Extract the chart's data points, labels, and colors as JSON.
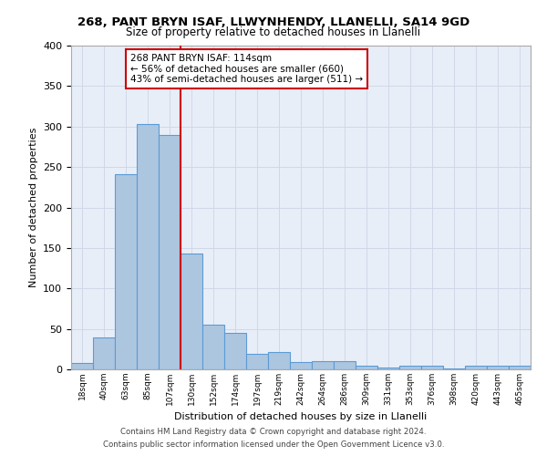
{
  "title1": "268, PANT BRYN ISAF, LLWYNHENDY, LLANELLI, SA14 9GD",
  "title2": "Size of property relative to detached houses in Llanelli",
  "xlabel": "Distribution of detached houses by size in Llanelli",
  "ylabel": "Number of detached properties",
  "bin_labels": [
    "18sqm",
    "40sqm",
    "63sqm",
    "85sqm",
    "107sqm",
    "130sqm",
    "152sqm",
    "174sqm",
    "197sqm",
    "219sqm",
    "242sqm",
    "264sqm",
    "286sqm",
    "309sqm",
    "331sqm",
    "353sqm",
    "376sqm",
    "398sqm",
    "420sqm",
    "443sqm",
    "465sqm"
  ],
  "bar_values": [
    8,
    39,
    241,
    303,
    290,
    143,
    55,
    45,
    19,
    21,
    9,
    10,
    10,
    5,
    2,
    4,
    4,
    1,
    4,
    4,
    5
  ],
  "bar_color": "#adc6e0",
  "bar_edge_color": "#5b9bd5",
  "vline_pos": 4.5,
  "vline_color": "#cc0000",
  "annotation_text": "268 PANT BRYN ISAF: 114sqm\n← 56% of detached houses are smaller (660)\n43% of semi-detached houses are larger (511) →",
  "annotation_box_color": "#ffffff",
  "annotation_box_edge": "#cc0000",
  "grid_color": "#d0d8e8",
  "plot_bg_color": "#e8eef8",
  "footer1": "Contains HM Land Registry data © Crown copyright and database right 2024.",
  "footer2": "Contains public sector information licensed under the Open Government Licence v3.0.",
  "ylim": [
    0,
    400
  ],
  "yticks": [
    0,
    50,
    100,
    150,
    200,
    250,
    300,
    350,
    400
  ]
}
